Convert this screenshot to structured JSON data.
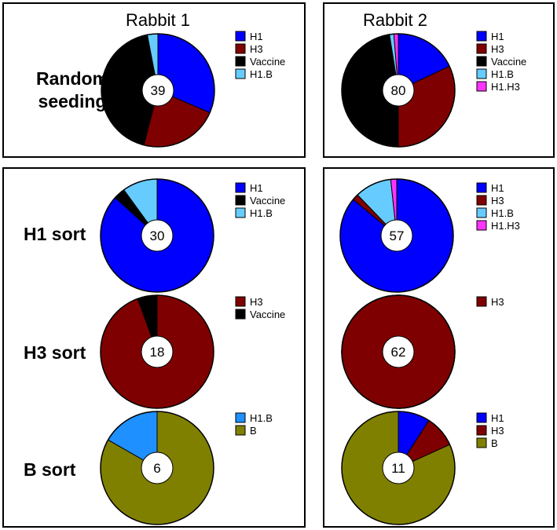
{
  "columns": [
    "Rabbit 1",
    "Rabbit 2"
  ],
  "row_labels": {
    "random": [
      "Random",
      "seeding"
    ],
    "h1": "H1 sort",
    "h3": "H3 sort",
    "b": "B sort"
  },
  "colors": {
    "H1": "#0000ff",
    "H3": "#7f0000",
    "Vaccine": "#000000",
    "H1.B": "#66ccff",
    "H1.H3": "#ff33ff",
    "B": "#808000",
    "H1.B (B sort)": "#1e90ff"
  },
  "chart_data": [
    {
      "type": "pie",
      "panel": "Random seeding",
      "column": "Rabbit 1",
      "total": "39",
      "slices": [
        {
          "label": "H1",
          "value": 0.315
        },
        {
          "label": "H3",
          "value": 0.225
        },
        {
          "label": "Vaccine",
          "value": 0.43
        },
        {
          "label": "H1.B",
          "value": 0.03
        }
      ],
      "legend": [
        "H1",
        "H3",
        "Vaccine",
        "H1.B"
      ]
    },
    {
      "type": "pie",
      "panel": "Random seeding",
      "column": "Rabbit 2",
      "total": "80",
      "slices": [
        {
          "label": "H1",
          "value": 0.18
        },
        {
          "label": "H3",
          "value": 0.32
        },
        {
          "label": "Vaccine",
          "value": 0.475
        },
        {
          "label": "H1.B",
          "value": 0.0125
        },
        {
          "label": "H1.H3",
          "value": 0.0125
        }
      ],
      "legend": [
        "H1",
        "H3",
        "Vaccine",
        "H1.B",
        "H1.H3"
      ]
    },
    {
      "type": "pie",
      "panel": "H1 sort",
      "column": "Rabbit 1",
      "total": "30",
      "slices": [
        {
          "label": "H1",
          "value": 0.867
        },
        {
          "label": "Vaccine",
          "value": 0.033
        },
        {
          "label": "H1.B",
          "value": 0.1
        }
      ],
      "legend": [
        "H1",
        "Vaccine",
        "H1.B"
      ]
    },
    {
      "type": "pie",
      "panel": "H1 sort",
      "column": "Rabbit 2",
      "total": "57",
      "slices": [
        {
          "label": "H1",
          "value": 0.86
        },
        {
          "label": "H3",
          "value": 0.018
        },
        {
          "label": "H1.B",
          "value": 0.105
        },
        {
          "label": "H1.H3",
          "value": 0.017
        }
      ],
      "legend": [
        "H1",
        "H3",
        "H1.B",
        "H1.H3"
      ]
    },
    {
      "type": "pie",
      "panel": "H3 sort",
      "column": "Rabbit 1",
      "total": "18",
      "slices": [
        {
          "label": "H3",
          "value": 0.944
        },
        {
          "label": "Vaccine",
          "value": 0.056
        }
      ],
      "legend": [
        "H3",
        "Vaccine"
      ]
    },
    {
      "type": "pie",
      "panel": "H3 sort",
      "column": "Rabbit 2",
      "total": "62",
      "slices": [
        {
          "label": "H3",
          "value": 1.0
        }
      ],
      "legend": [
        "H3"
      ]
    },
    {
      "type": "pie",
      "panel": "B sort",
      "column": "Rabbit 1",
      "total": "6",
      "slices": [
        {
          "label": "B",
          "value": 0.833,
          "color_key": "B"
        },
        {
          "label": "H1.B",
          "value": 0.167,
          "color_key": "H1.B (B sort)"
        }
      ],
      "legend": [
        {
          "label": "H1.B",
          "color_key": "H1.B (B sort)"
        },
        {
          "label": "B",
          "color_key": "B"
        }
      ]
    },
    {
      "type": "pie",
      "panel": "B sort",
      "column": "Rabbit 2",
      "total": "11",
      "slices": [
        {
          "label": "H1",
          "value": 0.091
        },
        {
          "label": "H3",
          "value": 0.091
        },
        {
          "label": "B",
          "value": 0.818
        }
      ],
      "legend": [
        "H1",
        "H3",
        "B"
      ]
    }
  ]
}
